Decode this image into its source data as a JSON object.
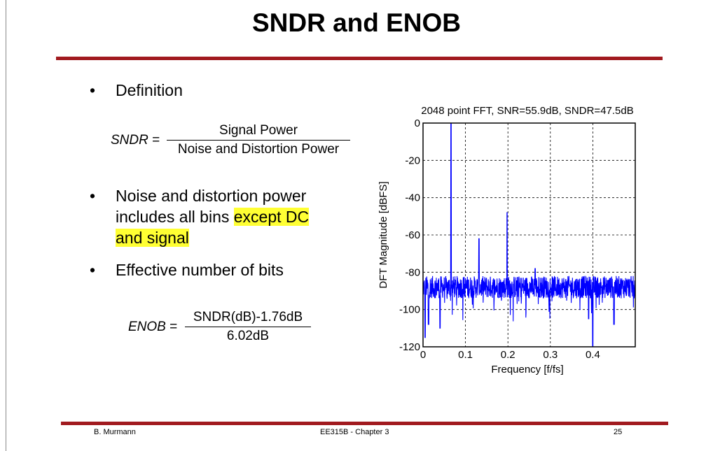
{
  "slide": {
    "title": "SNDR and ENOB",
    "bullets": [
      {
        "dot": "•",
        "lines": [
          "Definition"
        ]
      },
      {
        "dot": "•",
        "lines": [
          "Noise and distortion power"
        ],
        "line2_plain": "includes all bins ",
        "line2_highlight": "except DC",
        "line3_highlight": "and signal"
      },
      {
        "dot": "•",
        "lines": [
          "Effective number of bits"
        ]
      }
    ],
    "sndr_eq": {
      "name": "SNDR",
      "eq": " =",
      "numerator": "Signal Power",
      "denominator": "Noise and Distortion Power"
    },
    "enob_eq": {
      "name": "ENOB",
      "eq": " =",
      "numerator": "SNDR(dB)-1.76dB",
      "denominator": "6.02dB"
    },
    "footer": {
      "author": "B. Murmann",
      "course": "EE315B - Chapter 3",
      "page": "25"
    },
    "colors": {
      "accent_rule": "#a11a1f",
      "highlight": "#ffff33",
      "trace": "#0000ff"
    }
  },
  "chart_data": {
    "type": "line",
    "title": "2048 point FFT, SNR=55.9dB, SNDR=47.5dB",
    "xlabel": "Frequency [f/fs]",
    "ylabel": "DFT Magnitude [dBFS]",
    "xlim": [
      0,
      0.5
    ],
    "ylim": [
      -120,
      0
    ],
    "xticks": [
      0,
      0.1,
      0.2,
      0.3,
      0.4
    ],
    "xtick_labels": [
      "0",
      "0.1",
      "0.2",
      "0.3",
      "0.4"
    ],
    "yticks": [
      0,
      -20,
      -40,
      -60,
      -80,
      -100,
      -120
    ],
    "ytick_labels": [
      "0",
      "-20",
      "-40",
      "-60",
      "-80",
      "-100",
      "-120"
    ],
    "grid": true,
    "noise_floor_dB": -88,
    "peaks": [
      {
        "f": 0.066,
        "dB": 0
      },
      {
        "f": 0.132,
        "dB": -62
      },
      {
        "f": 0.198,
        "dB": -48
      },
      {
        "f": 0.264,
        "dB": -78
      }
    ],
    "dips": [
      {
        "f": 0.005,
        "dB": -115
      },
      {
        "f": 0.013,
        "dB": -108
      },
      {
        "f": 0.04,
        "dB": -110
      },
      {
        "f": 0.39,
        "dB": -105
      },
      {
        "f": 0.4,
        "dB": -120
      },
      {
        "f": 0.45,
        "dB": -108
      }
    ]
  }
}
